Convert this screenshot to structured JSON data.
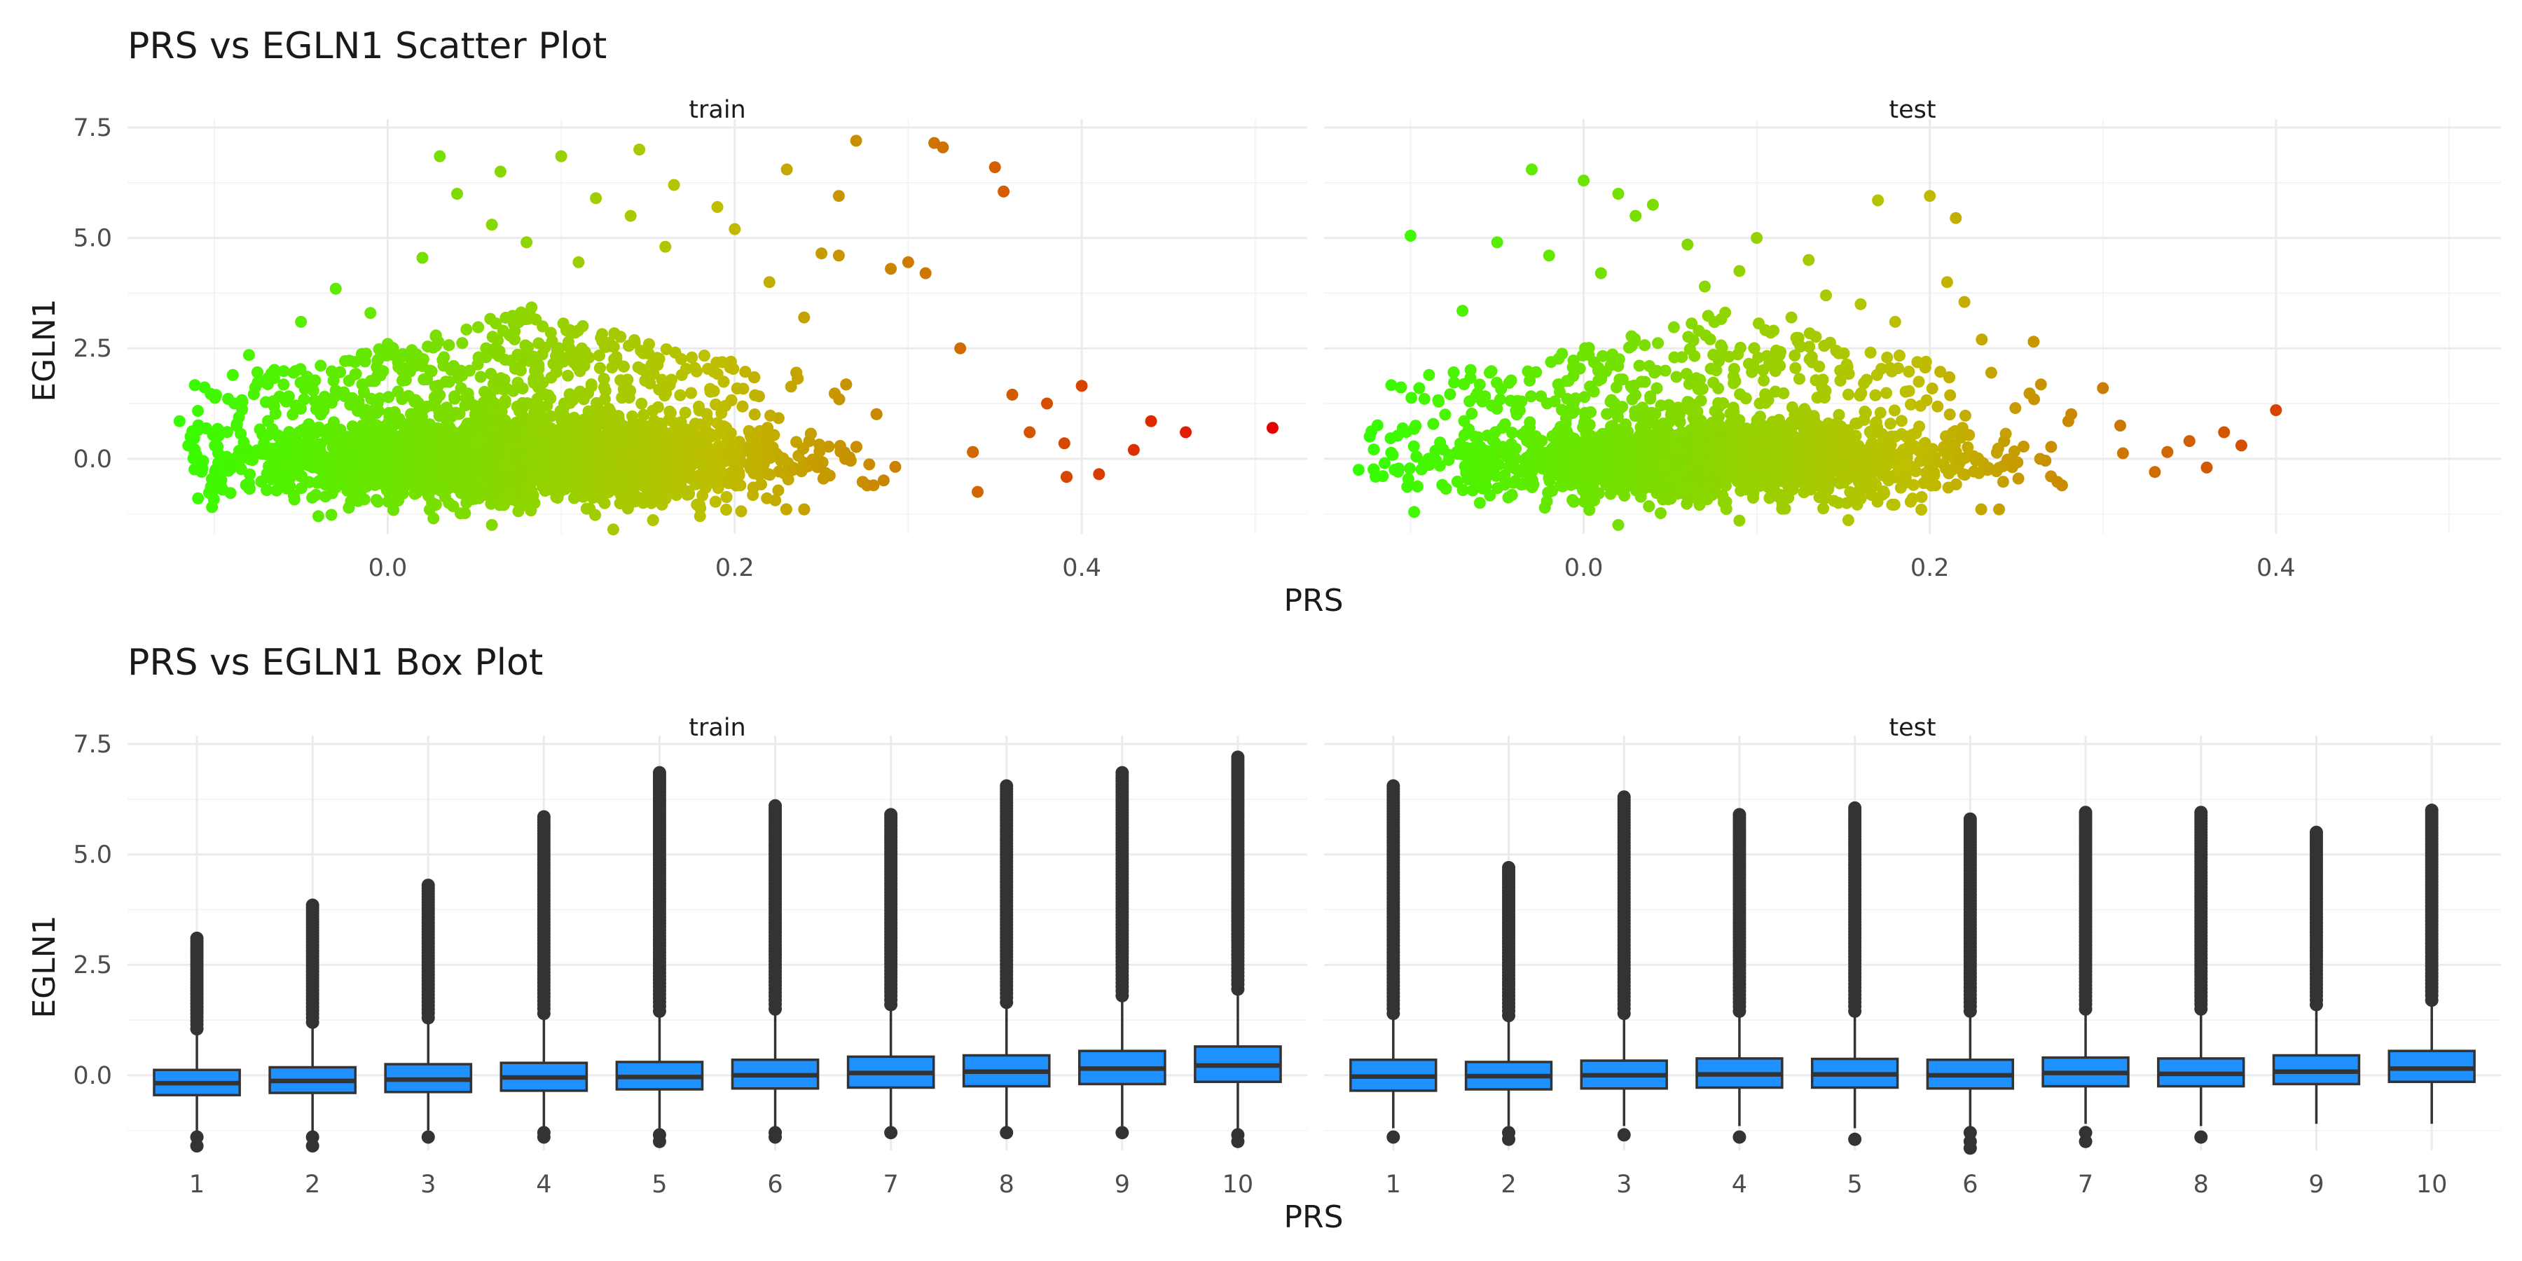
{
  "titles": {
    "scatter": "PRS vs EGLN1 Scatter Plot",
    "box": "PRS vs EGLN1 Box Plot"
  },
  "colors": {
    "low": "#33ff00",
    "mid": "#bfbf00",
    "high": "#e60000",
    "box_fill": "#1e90ff",
    "box_line": "#333333",
    "outlier": "#333333"
  },
  "chart_data": [
    {
      "type": "scatter",
      "title": "PRS vs EGLN1 Scatter Plot",
      "xlabel": "PRS",
      "ylabel": "EGLN1",
      "facets": [
        "train",
        "test"
      ],
      "xlim": [
        -0.15,
        0.53
      ],
      "ylim": [
        -1.7,
        7.5
      ],
      "x_ticks": [
        "0.0",
        "0.2",
        "0.4"
      ],
      "x_tick_values": [
        0.0,
        0.2,
        0.4
      ],
      "y_ticks": [
        "0.0",
        "2.5",
        "5.0",
        "7.5"
      ],
      "y_tick_values": [
        0.0,
        2.5,
        5.0,
        7.5
      ],
      "color_gradient": "green (low PRS) to red (high PRS)",
      "grid": true,
      "bulk_description": "dense cloud of points, EGLN1 mostly between -1.5 and 1.5",
      "series": [
        {
          "name": "train",
          "x_range": [
            -0.12,
            0.51
          ],
          "points": [
            [
              -0.12,
              0.85
            ],
            [
              -0.115,
              0.3
            ],
            [
              -0.1,
              -0.7
            ],
            [
              -0.08,
              2.35
            ],
            [
              -0.05,
              3.1
            ],
            [
              -0.03,
              3.85
            ],
            [
              -0.01,
              3.3
            ],
            [
              0.0,
              2.6
            ],
            [
              0.02,
              4.55
            ],
            [
              0.03,
              6.85
            ],
            [
              0.04,
              6.0
            ],
            [
              0.06,
              5.3
            ],
            [
              0.065,
              6.5
            ],
            [
              0.08,
              4.9
            ],
            [
              0.1,
              6.85
            ],
            [
              0.11,
              4.45
            ],
            [
              0.12,
              5.9
            ],
            [
              0.14,
              5.5
            ],
            [
              0.145,
              7.0
            ],
            [
              0.16,
              4.8
            ],
            [
              0.165,
              6.2
            ],
            [
              0.19,
              5.7
            ],
            [
              0.2,
              5.2
            ],
            [
              0.22,
              4.0
            ],
            [
              0.23,
              6.55
            ],
            [
              0.24,
              3.2
            ],
            [
              0.25,
              4.65
            ],
            [
              0.26,
              5.95
            ],
            [
              0.26,
              4.6
            ],
            [
              0.27,
              7.2
            ],
            [
              0.29,
              4.3
            ],
            [
              0.3,
              4.45
            ],
            [
              0.31,
              4.2
            ],
            [
              0.315,
              7.15
            ],
            [
              0.32,
              7.05
            ],
            [
              0.33,
              2.5
            ],
            [
              0.35,
              6.6
            ],
            [
              0.355,
              6.05
            ],
            [
              0.36,
              1.45
            ],
            [
              0.38,
              1.25
            ],
            [
              0.39,
              0.35
            ],
            [
              0.4,
              1.65
            ],
            [
              0.41,
              -0.35
            ],
            [
              0.43,
              0.2
            ],
            [
              0.44,
              0.85
            ],
            [
              0.46,
              0.6
            ],
            [
              0.51,
              0.7
            ],
            [
              0.34,
              -0.75
            ],
            [
              0.37,
              0.6
            ],
            [
              0.28,
              -0.6
            ],
            [
              0.18,
              -1.3
            ],
            [
              0.13,
              -1.6
            ],
            [
              0.06,
              -1.5
            ],
            [
              -0.04,
              -1.3
            ]
          ]
        },
        {
          "name": "test",
          "x_range": [
            -0.13,
            0.4
          ],
          "points": [
            [
              -0.13,
              -0.25
            ],
            [
              -0.115,
              -0.1
            ],
            [
              -0.1,
              5.05
            ],
            [
              -0.095,
              1.6
            ],
            [
              -0.08,
              1.0
            ],
            [
              -0.07,
              3.35
            ],
            [
              -0.05,
              4.9
            ],
            [
              -0.03,
              6.55
            ],
            [
              -0.02,
              4.6
            ],
            [
              0.0,
              6.3
            ],
            [
              0.01,
              4.2
            ],
            [
              0.02,
              6.0
            ],
            [
              0.03,
              5.5
            ],
            [
              0.04,
              5.75
            ],
            [
              0.06,
              4.85
            ],
            [
              0.07,
              3.9
            ],
            [
              0.09,
              4.25
            ],
            [
              0.1,
              5.0
            ],
            [
              0.12,
              3.2
            ],
            [
              0.13,
              4.5
            ],
            [
              0.14,
              3.7
            ],
            [
              0.16,
              3.5
            ],
            [
              0.17,
              5.85
            ],
            [
              0.18,
              3.1
            ],
            [
              0.2,
              5.95
            ],
            [
              0.21,
              4.0
            ],
            [
              0.215,
              5.45
            ],
            [
              0.22,
              3.55
            ],
            [
              0.23,
              2.7
            ],
            [
              0.26,
              2.65
            ],
            [
              0.28,
              0.85
            ],
            [
              0.3,
              1.6
            ],
            [
              0.31,
              0.75
            ],
            [
              0.33,
              -0.3
            ],
            [
              0.35,
              0.4
            ],
            [
              0.36,
              -0.2
            ],
            [
              0.37,
              0.6
            ],
            [
              0.38,
              0.3
            ],
            [
              0.4,
              1.1
            ],
            [
              0.27,
              -0.4
            ],
            [
              0.19,
              -0.9
            ],
            [
              0.09,
              -1.4
            ],
            [
              0.02,
              -1.5
            ],
            [
              -0.06,
              -1.0
            ]
          ]
        }
      ]
    },
    {
      "type": "box",
      "title": "PRS vs EGLN1 Box Plot",
      "xlabel": "PRS",
      "ylabel": "EGLN1",
      "facets": [
        "train",
        "test"
      ],
      "categories": [
        "1",
        "2",
        "3",
        "4",
        "5",
        "6",
        "7",
        "8",
        "9",
        "10"
      ],
      "ylim": [
        -1.7,
        7.5
      ],
      "y_ticks": [
        "0.0",
        "2.5",
        "5.0",
        "7.5"
      ],
      "y_tick_values": [
        0.0,
        2.5,
        5.0,
        7.5
      ],
      "series": [
        {
          "name": "train",
          "boxes": [
            {
              "q1": -0.45,
              "median": -0.18,
              "q3": 0.12,
              "wlo": -1.3,
              "whi": 0.95,
              "out_lo": [
                -1.4,
                -1.6
              ],
              "out_hi_max": 3.1
            },
            {
              "q1": -0.4,
              "median": -0.13,
              "q3": 0.18,
              "wlo": -1.3,
              "whi": 1.1,
              "out_lo": [
                -1.4,
                -1.6
              ],
              "out_hi_max": 3.85
            },
            {
              "q1": -0.38,
              "median": -0.1,
              "q3": 0.25,
              "wlo": -1.25,
              "whi": 1.2,
              "out_lo": [
                -1.4
              ],
              "out_hi_max": 4.3
            },
            {
              "q1": -0.35,
              "median": -0.05,
              "q3": 0.28,
              "wlo": -1.2,
              "whi": 1.3,
              "out_lo": [
                -1.3,
                -1.4
              ],
              "out_hi_max": 5.85
            },
            {
              "q1": -0.32,
              "median": -0.04,
              "q3": 0.3,
              "wlo": -1.2,
              "whi": 1.35,
              "out_lo": [
                -1.35,
                -1.5
              ],
              "out_hi_max": 6.85
            },
            {
              "q1": -0.3,
              "median": 0.0,
              "q3": 0.35,
              "wlo": -1.2,
              "whi": 1.4,
              "out_lo": [
                -1.3,
                -1.4
              ],
              "out_hi_max": 6.1
            },
            {
              "q1": -0.28,
              "median": 0.05,
              "q3": 0.42,
              "wlo": -1.2,
              "whi": 1.5,
              "out_lo": [
                -1.3
              ],
              "out_hi_max": 5.9
            },
            {
              "q1": -0.25,
              "median": 0.08,
              "q3": 0.45,
              "wlo": -1.2,
              "whi": 1.55,
              "out_lo": [
                -1.3
              ],
              "out_hi_max": 6.55
            },
            {
              "q1": -0.2,
              "median": 0.15,
              "q3": 0.55,
              "wlo": -1.15,
              "whi": 1.7,
              "out_lo": [
                -1.3
              ],
              "out_hi_max": 6.85
            },
            {
              "q1": -0.15,
              "median": 0.22,
              "q3": 0.65,
              "wlo": -1.2,
              "whi": 1.85,
              "out_lo": [
                -1.35,
                -1.5
              ],
              "out_hi_max": 7.2
            }
          ]
        },
        {
          "name": "test",
          "boxes": [
            {
              "q1": -0.35,
              "median": -0.03,
              "q3": 0.35,
              "wlo": -1.2,
              "whi": 1.3,
              "out_lo": [
                -1.4
              ],
              "out_hi_max": 6.55
            },
            {
              "q1": -0.32,
              "median": -0.02,
              "q3": 0.3,
              "wlo": -1.15,
              "whi": 1.25,
              "out_lo": [
                -1.3,
                -1.45
              ],
              "out_hi_max": 4.7
            },
            {
              "q1": -0.3,
              "median": 0.0,
              "q3": 0.33,
              "wlo": -1.15,
              "whi": 1.3,
              "out_lo": [
                -1.35
              ],
              "out_hi_max": 6.3
            },
            {
              "q1": -0.28,
              "median": 0.02,
              "q3": 0.38,
              "wlo": -1.15,
              "whi": 1.35,
              "out_lo": [
                -1.4
              ],
              "out_hi_max": 5.9
            },
            {
              "q1": -0.28,
              "median": 0.02,
              "q3": 0.37,
              "wlo": -1.2,
              "whi": 1.35,
              "out_lo": [
                -1.45
              ],
              "out_hi_max": 6.05
            },
            {
              "q1": -0.3,
              "median": 0.0,
              "q3": 0.35,
              "wlo": -1.2,
              "whi": 1.35,
              "out_lo": [
                -1.3,
                -1.5,
                -1.65
              ],
              "out_hi_max": 5.8
            },
            {
              "q1": -0.25,
              "median": 0.05,
              "q3": 0.4,
              "wlo": -1.1,
              "whi": 1.4,
              "out_lo": [
                -1.3,
                -1.5
              ],
              "out_hi_max": 5.95
            },
            {
              "q1": -0.25,
              "median": 0.03,
              "q3": 0.38,
              "wlo": -1.15,
              "whi": 1.4,
              "out_lo": [
                -1.4
              ],
              "out_hi_max": 5.95
            },
            {
              "q1": -0.2,
              "median": 0.08,
              "q3": 0.45,
              "wlo": -1.1,
              "whi": 1.5,
              "out_lo": [],
              "out_hi_max": 5.5
            },
            {
              "q1": -0.15,
              "median": 0.15,
              "q3": 0.55,
              "wlo": -1.1,
              "whi": 1.6,
              "out_lo": [],
              "out_hi_max": 6.0
            }
          ]
        }
      ]
    }
  ]
}
